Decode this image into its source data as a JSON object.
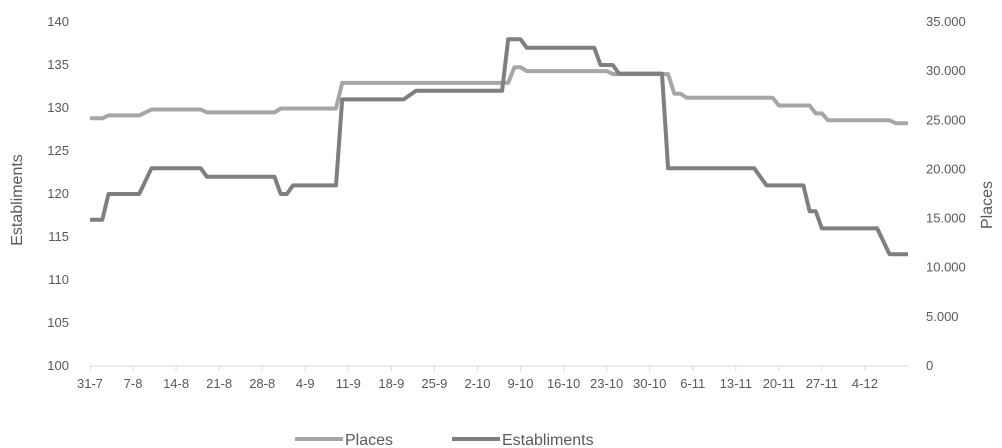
{
  "chart_data": {
    "type": "line",
    "title": "",
    "xlabel": "",
    "ylabel_left": "Establiments",
    "ylabel_right": "Places",
    "ylim_left": [
      100,
      140
    ],
    "yticks_left": [
      "100",
      "105",
      "110",
      "115",
      "120",
      "125",
      "130",
      "135",
      "140"
    ],
    "ylim_right": [
      0,
      35000
    ],
    "yticks_right": [
      "0",
      "5.000",
      "10.000",
      "15.000",
      "20.000",
      "25.000",
      "30.000",
      "35.000"
    ],
    "x_tick_labels": [
      "31-7",
      "7-8",
      "14-8",
      "21-8",
      "28-8",
      "4-9",
      "11-9",
      "18-9",
      "25-9",
      "2-10",
      "9-10",
      "16-10",
      "23-10",
      "30-10",
      "6-11",
      "13-11",
      "20-11",
      "27-11",
      "4-12"
    ],
    "x_start": "31-7",
    "x_end": "11-12",
    "legend_position": "bottom",
    "grid": false,
    "series": [
      {
        "name": "Places",
        "axis": "right",
        "color": "#a6a6a6",
        "points": [
          [
            "31-7",
            25200
          ],
          [
            "2-8",
            25200
          ],
          [
            "3-8",
            25500
          ],
          [
            "8-8",
            25500
          ],
          [
            "10-8",
            26100
          ],
          [
            "18-8",
            26100
          ],
          [
            "19-8",
            25800
          ],
          [
            "30-8",
            25800
          ],
          [
            "31-8",
            26200
          ],
          [
            "9-9",
            26200
          ],
          [
            "10-9",
            28800
          ],
          [
            "7-10",
            28800
          ],
          [
            "8-10",
            30400
          ],
          [
            "9-10",
            30400
          ],
          [
            "10-10",
            30000
          ],
          [
            "23-10",
            30000
          ],
          [
            "24-10",
            29700
          ],
          [
            "2-11",
            29700
          ],
          [
            "3-11",
            27700
          ],
          [
            "4-11",
            27700
          ],
          [
            "5-11",
            27300
          ],
          [
            "19-11",
            27300
          ],
          [
            "20-11",
            26500
          ],
          [
            "25-11",
            26500
          ],
          [
            "26-11",
            25700
          ],
          [
            "27-11",
            25700
          ],
          [
            "28-11",
            25000
          ],
          [
            "8-12",
            25000
          ],
          [
            "9-12",
            24700
          ],
          [
            "11-12",
            24700
          ]
        ]
      },
      {
        "name": "Establiments",
        "axis": "left",
        "color": "#7f7f7f",
        "points": [
          [
            "31-7",
            117
          ],
          [
            "2-8",
            117
          ],
          [
            "3-8",
            120
          ],
          [
            "8-8",
            120
          ],
          [
            "10-8",
            123
          ],
          [
            "18-8",
            123
          ],
          [
            "19-8",
            122
          ],
          [
            "30-8",
            122
          ],
          [
            "31-8",
            120
          ],
          [
            "1-9",
            120
          ],
          [
            "2-9",
            121
          ],
          [
            "9-9",
            121
          ],
          [
            "10-9",
            131
          ],
          [
            "20-9",
            131
          ],
          [
            "22-9",
            132
          ],
          [
            "6-10",
            132
          ],
          [
            "7-10",
            138
          ],
          [
            "9-10",
            138
          ],
          [
            "10-10",
            137
          ],
          [
            "21-10",
            137
          ],
          [
            "22-10",
            135
          ],
          [
            "24-10",
            135
          ],
          [
            "25-10",
            134
          ],
          [
            "1-11",
            134
          ],
          [
            "2-11",
            123
          ],
          [
            "16-11",
            123
          ],
          [
            "18-11",
            121
          ],
          [
            "24-11",
            121
          ],
          [
            "25-11",
            118
          ],
          [
            "26-11",
            118
          ],
          [
            "27-11",
            116
          ],
          [
            "6-12",
            116
          ],
          [
            "8-12",
            113
          ],
          [
            "11-12",
            113
          ]
        ]
      }
    ]
  }
}
